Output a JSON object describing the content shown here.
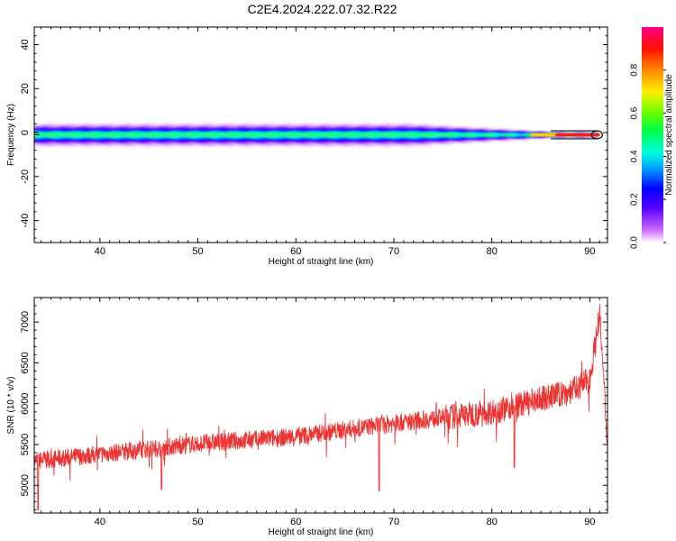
{
  "title": "C2E4.2024.222.07.32.R22",
  "chart_data": [
    {
      "type": "heatmap",
      "xlabel": "Height of straight line (km)",
      "ylabel": "Frequency (Hz)",
      "xlim": [
        33.3,
        91.8
      ],
      "ylim": [
        -50,
        48
      ],
      "xticks": [
        40,
        50,
        60,
        70,
        80,
        90
      ],
      "yticks": [
        -40,
        -20,
        0,
        20,
        40
      ],
      "colorbar": {
        "label": "Normalized spectral amplitude",
        "range": [
          0,
          1
        ],
        "ticks": [
          "0.0",
          "0.2",
          "0.4",
          "0.6",
          "0.8"
        ],
        "colormap": "rainbow"
      },
      "band": {
        "center_hz": -1,
        "x_end_km": 91,
        "note": "spectral band around ~-1 Hz, widest (~±5 Hz) at low heights, narrowing to a peak-amplitude line near 88-91 km"
      }
    },
    {
      "type": "line",
      "xlabel": "Height of straight line (km)",
      "ylabel": "SNR (10 * v/v)",
      "xlim": [
        33.3,
        91.8
      ],
      "ylim": [
        4660,
        7300
      ],
      "xticks": [
        40,
        50,
        60,
        70,
        80,
        90
      ],
      "yticks": [
        5000,
        5500,
        6000,
        6500,
        7000
      ],
      "color": "#ee3333",
      "trend": {
        "x": [
          33.3,
          40,
          50,
          60,
          70,
          80,
          88,
          90,
          91,
          91.8
        ],
        "y": [
          5300,
          5380,
          5510,
          5600,
          5760,
          5900,
          6150,
          6300,
          7100,
          5500
        ]
      },
      "dips": [
        {
          "x": 68.5,
          "y": 4930
        },
        {
          "x": 82.3,
          "y": 5220
        },
        {
          "x": 46.3,
          "y": 4950
        },
        {
          "x": 33.7,
          "y": 4700
        }
      ]
    }
  ]
}
